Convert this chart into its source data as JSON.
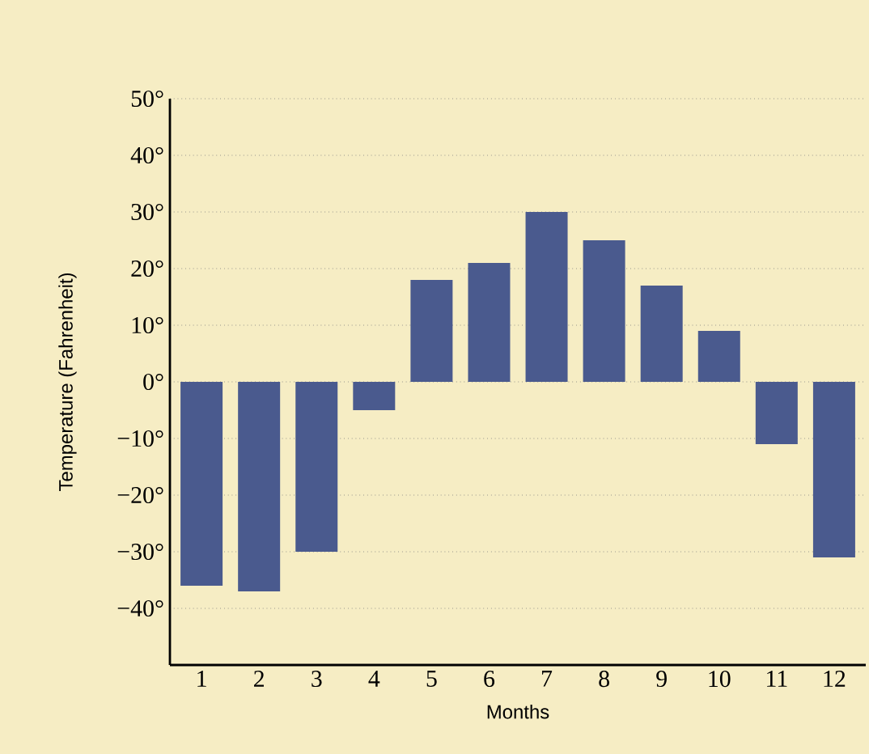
{
  "chart_data": {
    "type": "bar",
    "xlabel": "Months",
    "ylabel": "Temperature (Fahrenheit)",
    "categories": [
      "1",
      "2",
      "3",
      "4",
      "5",
      "6",
      "7",
      "8",
      "9",
      "10",
      "11",
      "12"
    ],
    "values": [
      -36,
      -37,
      -30,
      -5,
      18,
      21,
      30,
      25,
      17,
      9,
      -11,
      -31
    ],
    "color": "#4a5a8e",
    "ylim": [
      -50,
      50
    ],
    "yticks": [
      {
        "value": -40,
        "label": "−40°"
      },
      {
        "value": -30,
        "label": "−30°"
      },
      {
        "value": -20,
        "label": "−20°"
      },
      {
        "value": -10,
        "label": "−10°"
      },
      {
        "value": 0,
        "label": "0°"
      },
      {
        "value": 10,
        "label": "10°"
      },
      {
        "value": 20,
        "label": "20°"
      },
      {
        "value": 30,
        "label": "30°"
      },
      {
        "value": 40,
        "label": "40°"
      },
      {
        "value": 50,
        "label": "50°"
      }
    ],
    "grid": "y"
  }
}
